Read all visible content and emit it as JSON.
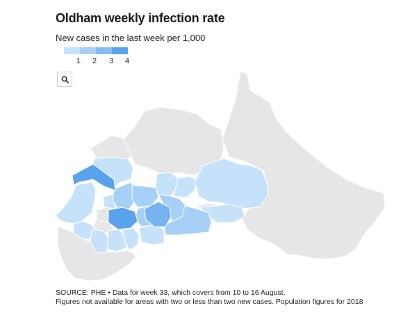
{
  "title": "Oldham weekly infection rate",
  "subtitle": "New cases in the last week per 1,000",
  "legend": {
    "ticks": [
      "1",
      "2",
      "3",
      "4"
    ],
    "colors": [
      "#c6e2fb",
      "#a7d0f7",
      "#85bcf2",
      "#5aa2ec"
    ]
  },
  "search_icon": "magnifier-icon",
  "map": {
    "no_data_color": "#e6e6e6",
    "border_color": "#ffffff"
  },
  "source": {
    "line1": "SOURCE: PHE • Data for week 33, which covers from 10 to 16 August.",
    "line2": "Figures not available for areas with two or less than two new cases. Population figures for 2018"
  }
}
